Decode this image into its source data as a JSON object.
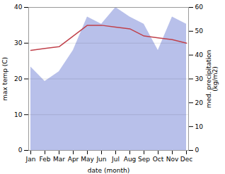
{
  "chart_data": {
    "type": "line",
    "categories": [
      "Jan",
      "Feb",
      "Mar",
      "Apr",
      "May",
      "Jun",
      "Jul",
      "Aug",
      "Sep",
      "Oct",
      "Nov",
      "Dec"
    ],
    "series": [
      {
        "type": "area",
        "axis": "y2",
        "color": "#b8c0ea",
        "values": [
          35,
          29,
          33,
          42,
          56,
          53,
          60,
          56,
          53,
          42,
          56,
          53
        ]
      },
      {
        "type": "line",
        "color": "#c0404a",
        "values": [
          28,
          28.5,
          29,
          32,
          35,
          35,
          34.5,
          34,
          32,
          31.5,
          31,
          30
        ]
      }
    ],
    "xlabel": "date (month)",
    "ylabel": "max temp (C)",
    "y2label": "med. precipitation\n(kg/m2)",
    "ylim": [
      0,
      40
    ],
    "yticks": [
      0,
      10,
      20,
      30,
      40
    ],
    "y2lim": [
      0,
      60
    ],
    "y2ticks": [
      0,
      10,
      20,
      30,
      40,
      50,
      60
    ],
    "grid": true
  }
}
